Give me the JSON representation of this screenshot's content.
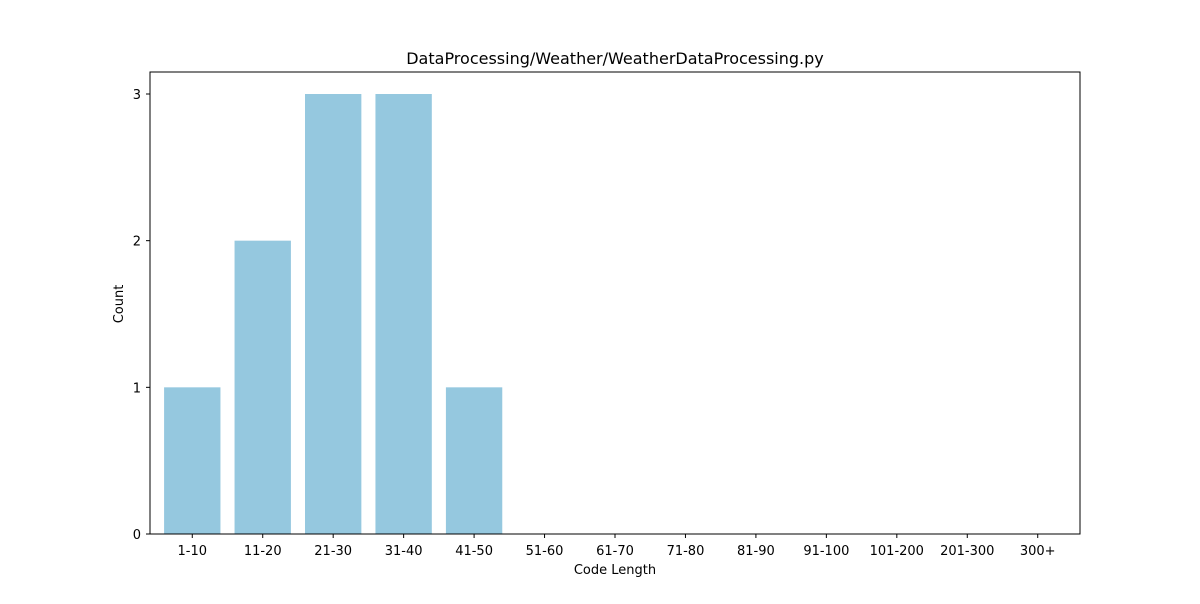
{
  "chart_data": {
    "type": "bar",
    "title": "DataProcessing/Weather/WeatherDataProcessing.py",
    "xlabel": "Code Length",
    "ylabel": "Count",
    "categories": [
      "1-10",
      "11-20",
      "21-30",
      "31-40",
      "41-50",
      "51-60",
      "61-70",
      "71-80",
      "81-90",
      "91-100",
      "101-200",
      "201-300",
      "300+"
    ],
    "values": [
      1,
      2,
      3,
      3,
      1,
      0,
      0,
      0,
      0,
      0,
      0,
      0,
      0
    ],
    "ylim": [
      0,
      3.15
    ],
    "yticks": [
      0,
      1,
      2,
      3
    ],
    "grid": false,
    "legend": "none",
    "bar_color": "#95C8DF"
  }
}
